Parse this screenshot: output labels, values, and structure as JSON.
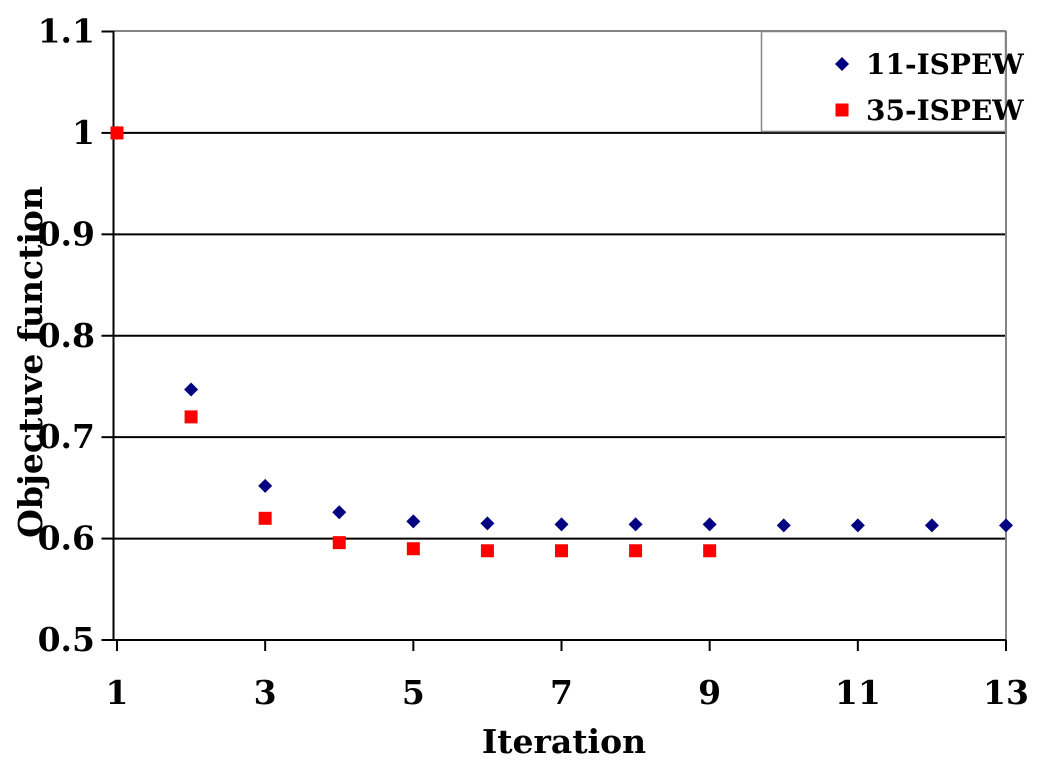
{
  "chart_data": {
    "type": "scatter",
    "title": "",
    "xlabel": "Iteration",
    "ylabel": "Objectuve function",
    "xlim": [
      1,
      13
    ],
    "ylim": [
      0.5,
      1.1
    ],
    "x_ticks": [
      1,
      3,
      5,
      7,
      9,
      11,
      13
    ],
    "x_tick_labels": [
      "1",
      "3",
      "5",
      "7",
      "9",
      "11",
      "13"
    ],
    "y_ticks": [
      0.5,
      0.6,
      0.7,
      0.8,
      0.9,
      1.0,
      1.1
    ],
    "y_tick_labels": [
      "0.5",
      "0.6",
      "0.7",
      "0.8",
      "0.9",
      "1",
      "1.1"
    ],
    "grid": "horizontal-only",
    "legend_position": "top-right-inside",
    "series": [
      {
        "name": "11-ISPEW",
        "marker": "diamond",
        "color": "#000080",
        "x": [
          1,
          2,
          3,
          4,
          5,
          6,
          7,
          8,
          9,
          10,
          11,
          12,
          13
        ],
        "y": [
          1.0,
          0.747,
          0.652,
          0.626,
          0.617,
          0.615,
          0.614,
          0.614,
          0.614,
          0.613,
          0.613,
          0.613,
          0.613
        ]
      },
      {
        "name": "35-ISPEW",
        "marker": "square",
        "color": "#FF0000",
        "x": [
          1,
          2,
          3,
          4,
          5,
          6,
          7,
          8,
          9
        ],
        "y": [
          1.0,
          0.72,
          0.62,
          0.596,
          0.59,
          0.588,
          0.588,
          0.588,
          0.588
        ]
      }
    ],
    "colors": {
      "gridline": "#000000",
      "axis": "#000000",
      "plot_border": "#848484",
      "legend_border": "#848484",
      "text": "#000000",
      "background": "#FFFFFF"
    }
  }
}
